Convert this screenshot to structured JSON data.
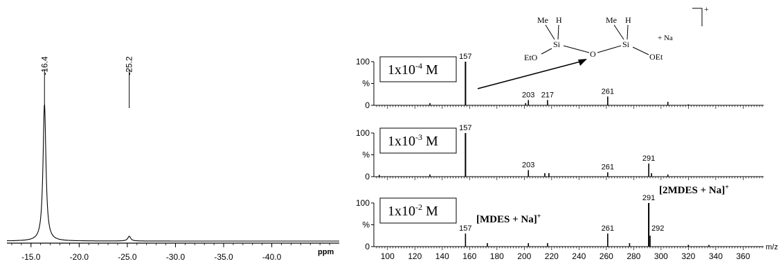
{
  "chart_data": [
    {
      "type": "line",
      "title": "",
      "xlabel": "ppm",
      "ylabel": "",
      "xlim": [
        -12.5,
        -47.0
      ],
      "x_ticks": [
        "-15.0",
        "-20.0",
        "-25.0",
        "-30.0",
        "-35.0",
        "-40.0"
      ],
      "grid": false,
      "peaks": [
        {
          "x": -16.4,
          "label": "-16.4",
          "height": 1.0
        },
        {
          "x": -25.2,
          "label": "-25.2",
          "height": 0.035
        }
      ]
    },
    {
      "type": "bar",
      "title": "",
      "xlabel": "m/z",
      "ylabel": "%",
      "xlim": [
        90,
        375
      ],
      "ylim": [
        0,
        100
      ],
      "y_ticks": [
        "0",
        "%",
        "100"
      ],
      "x_ticks": [
        "100",
        "120",
        "140",
        "160",
        "180",
        "200",
        "220",
        "240",
        "260",
        "280",
        "300",
        "320",
        "340",
        "360"
      ],
      "grid": false,
      "series": [
        {
          "name": "1x10⁻⁴ M",
          "label_main": "1x10",
          "label_exp": "-4",
          "label_unit": " M",
          "peaks": [
            {
              "mz": 157,
              "intensity": 100,
              "label": "157"
            },
            {
              "mz": 203,
              "intensity": 12,
              "label": "203"
            },
            {
              "mz": 217,
              "intensity": 12,
              "label": "217"
            },
            {
              "mz": 261,
              "intensity": 20,
              "label": "261"
            },
            {
              "mz": 131,
              "intensity": 5
            },
            {
              "mz": 201,
              "intensity": 5
            },
            {
              "mz": 305,
              "intensity": 8
            },
            {
              "mz": 320,
              "intensity": 2
            }
          ]
        },
        {
          "name": "1x10⁻³ M",
          "label_main": "1x10",
          "label_exp": "-3",
          "label_unit": " M",
          "peaks": [
            {
              "mz": 157,
              "intensity": 100,
              "label": "157"
            },
            {
              "mz": 203,
              "intensity": 15,
              "label": "203"
            },
            {
              "mz": 261,
              "intensity": 10,
              "label": "261"
            },
            {
              "mz": 291,
              "intensity": 30,
              "label": "291"
            },
            {
              "mz": 94,
              "intensity": 4
            },
            {
              "mz": 131,
              "intensity": 5
            },
            {
              "mz": 215,
              "intensity": 8
            },
            {
              "mz": 218,
              "intensity": 8
            },
            {
              "mz": 293,
              "intensity": 8
            },
            {
              "mz": 305,
              "intensity": 5
            }
          ]
        },
        {
          "name": "1x10⁻² M",
          "label_main": "1x10",
          "label_exp": "-2",
          "label_unit": " M",
          "peaks": [
            {
              "mz": 157,
              "intensity": 30,
              "label": "157"
            },
            {
              "mz": 261,
              "intensity": 30,
              "label": "261"
            },
            {
              "mz": 291,
              "intensity": 100,
              "label": "291"
            },
            {
              "mz": 292,
              "intensity": 25,
              "label": "292"
            },
            {
              "mz": 173,
              "intensity": 8
            },
            {
              "mz": 203,
              "intensity": 8
            },
            {
              "mz": 217,
              "intensity": 8
            },
            {
              "mz": 277,
              "intensity": 8
            },
            {
              "mz": 320,
              "intensity": 4
            },
            {
              "mz": 335,
              "intensity": 4
            }
          ]
        }
      ],
      "annotations": {
        "mdes": "[MDES + Na]",
        "mdes_sup": "+",
        "twomdes": "[2MDES + Na]",
        "twomdes_sup": "+"
      },
      "structure": {
        "me1": "Me",
        "h1": "H",
        "me2": "Me",
        "h2": "H",
        "si1": "Si",
        "si2": "Si",
        "o": "O",
        "eto": "EtO",
        "oet": "OEt",
        "na": "+ Na",
        "charge": "+"
      }
    }
  ]
}
